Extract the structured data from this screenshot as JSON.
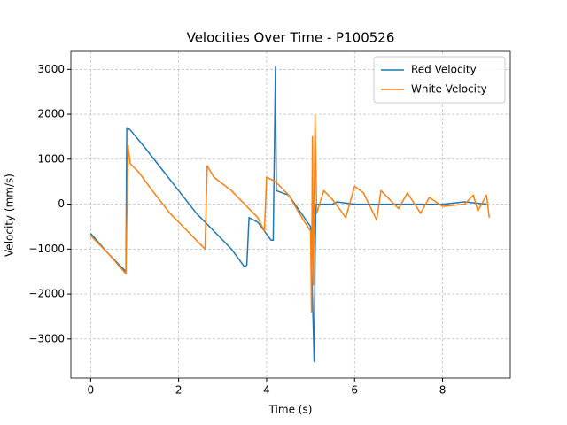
{
  "chart_data": {
    "type": "line",
    "title": "Velocities Over Time - P100526",
    "x_label": "Time (s)",
    "y_label": "Velocity (mm/s)",
    "xlim": [
      -0.45,
      9.54
    ],
    "ylim": [
      -3870,
      3400
    ],
    "xticks": [
      0,
      2,
      4,
      6,
      8
    ],
    "yticks": [
      {
        "value": -3000,
        "label": "−3000"
      },
      {
        "value": -2000,
        "label": "−2000"
      },
      {
        "value": -1000,
        "label": "−1000"
      },
      0,
      1000,
      2000,
      3000
    ],
    "grid": true,
    "legend": "upper right",
    "series": [
      {
        "name": "Red Velocity",
        "color": "#1f77b4",
        "x": [
          0,
          0.4,
          0.8,
          0.82,
          0.9,
          1.2,
          1.6,
          2.0,
          2.4,
          2.8,
          3.2,
          3.5,
          3.55,
          3.6,
          3.8,
          4.1,
          4.15,
          4.2,
          4.22,
          4.5,
          5.0,
          5.08,
          5.1,
          5.12,
          5.5,
          5.6,
          6,
          7,
          8,
          8.5,
          9
        ],
        "values": [
          -650,
          -1100,
          -1500,
          1700,
          1650,
          1300,
          800,
          300,
          -200,
          -600,
          -1000,
          -1400,
          -1350,
          -300,
          -400,
          -800,
          -800,
          3050,
          300,
          200,
          -500,
          -3500,
          -1300,
          0,
          0,
          50,
          0,
          0,
          0,
          50,
          0
        ]
      },
      {
        "name": "White Velocity",
        "color": "#ff7f0e",
        "x": [
          0,
          0.4,
          0.8,
          0.85,
          0.9,
          1.1,
          1.4,
          1.8,
          2.2,
          2.5,
          2.6,
          2.65,
          2.8,
          3.2,
          3.5,
          3.8,
          3.95,
          4.0,
          4.2,
          4.5,
          4.8,
          5.0,
          5.02,
          5.04,
          5.06,
          5.1,
          5.14,
          5.3,
          5.5,
          5.8,
          6.0,
          6.2,
          6.5,
          6.6,
          7.0,
          7.2,
          7.5,
          7.7,
          8.0,
          8.5,
          8.7,
          8.8,
          9.0,
          9.06
        ],
        "values": [
          -700,
          -1100,
          -1550,
          1300,
          900,
          700,
          300,
          -200,
          -600,
          -900,
          -1000,
          850,
          600,
          300,
          0,
          -300,
          -600,
          600,
          500,
          200,
          -300,
          -600,
          -2400,
          1500,
          -1800,
          2000,
          -200,
          300,
          100,
          -300,
          400,
          250,
          -350,
          300,
          -100,
          250,
          -200,
          150,
          -50,
          0,
          200,
          -150,
          200,
          -300
        ]
      }
    ]
  }
}
